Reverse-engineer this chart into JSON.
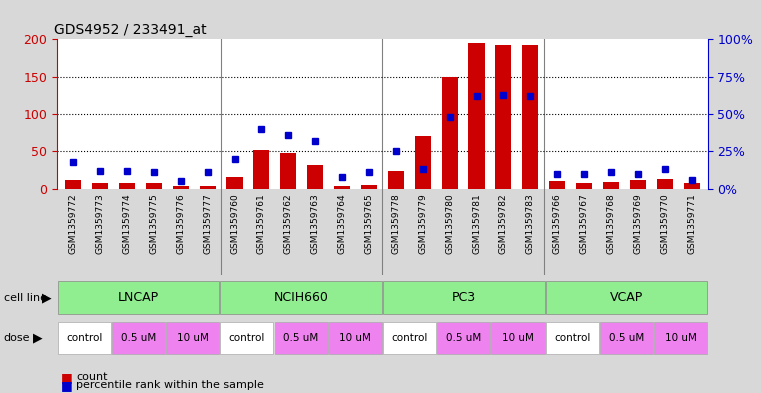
{
  "title": "GDS4952 / 233491_at",
  "samples": [
    "GSM1359772",
    "GSM1359773",
    "GSM1359774",
    "GSM1359775",
    "GSM1359776",
    "GSM1359777",
    "GSM1359760",
    "GSM1359761",
    "GSM1359762",
    "GSM1359763",
    "GSM1359764",
    "GSM1359765",
    "GSM1359778",
    "GSM1359779",
    "GSM1359780",
    "GSM1359781",
    "GSM1359782",
    "GSM1359783",
    "GSM1359766",
    "GSM1359767",
    "GSM1359768",
    "GSM1359769",
    "GSM1359770",
    "GSM1359771"
  ],
  "counts": [
    11,
    7,
    8,
    8,
    3,
    3,
    15,
    52,
    48,
    32,
    4,
    5,
    24,
    70,
    150,
    195,
    193,
    192,
    10,
    8,
    9,
    12,
    13,
    7
  ],
  "percentiles": [
    18,
    12,
    12,
    11,
    5,
    11,
    20,
    40,
    36,
    32,
    8,
    11,
    25,
    13,
    48,
    62,
    63,
    62,
    10,
    10,
    11,
    10,
    13,
    6
  ],
  "cell_lines": [
    "LNCAP",
    "NCIH660",
    "PC3",
    "VCAP"
  ],
  "cell_line_counts": [
    6,
    6,
    6,
    6
  ],
  "bar_color": "#cc0000",
  "dot_color": "#0000cc",
  "left_axis_color": "#cc0000",
  "right_axis_color": "#0000cc",
  "ylim_left": [
    0,
    200
  ],
  "ylim_right": [
    0,
    100
  ],
  "left_yticks": [
    0,
    50,
    100,
    150,
    200
  ],
  "right_yticks": [
    0,
    25,
    50,
    75,
    100
  ],
  "right_yticklabels": [
    "0%",
    "25%",
    "50%",
    "75%",
    "100%"
  ],
  "cell_line_color_light": "#c8f0c8",
  "cell_line_color_dark": "#50c850",
  "dose_control_color": "#ffffff",
  "dose_dose_color": "#ee82ee",
  "bg_color": "#d8d8d8",
  "plot_bg_color": "#ffffff",
  "xtick_bg_color": "#d0d0d0",
  "legend_count_color": "#cc0000",
  "legend_pct_color": "#0000cc",
  "grid_color": "#000000",
  "separator_color": "#808080"
}
